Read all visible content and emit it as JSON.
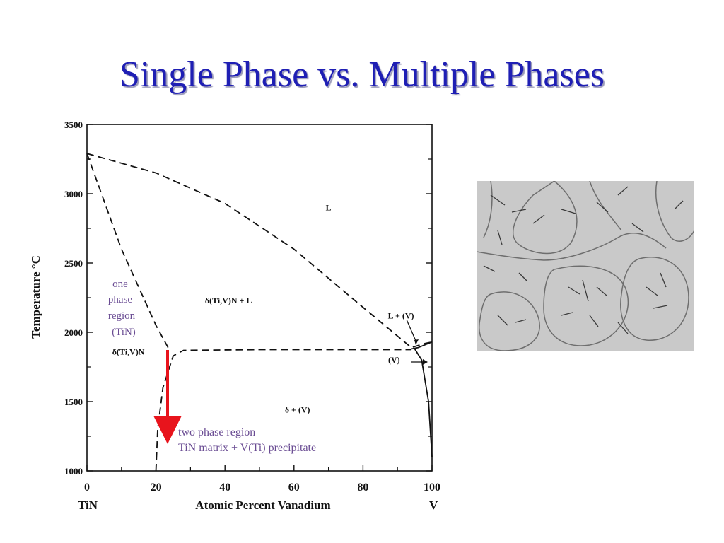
{
  "slide": {
    "title": "Single Phase vs. Multiple Phases"
  },
  "chart_data": {
    "type": "line",
    "title": "",
    "xlabel": "Atomic Percent Vanadium",
    "ylabel": "Temperature °C",
    "xlim": [
      0,
      100
    ],
    "ylim": [
      1000,
      3500
    ],
    "x_ticks": [
      "0",
      "20",
      "40",
      "60",
      "80",
      "100"
    ],
    "y_ticks": [
      "1000",
      "1500",
      "2000",
      "2500",
      "3000",
      "3500"
    ],
    "x_endpoint_labels": {
      "left": "TiN",
      "right": "V"
    },
    "series": [
      {
        "style": "dashed",
        "points": [
          [
            0,
            3290
          ],
          [
            20,
            3150
          ],
          [
            40,
            2930
          ],
          [
            60,
            2600
          ],
          [
            80,
            2180
          ],
          [
            94,
            1890
          ],
          [
            98,
            1920
          ],
          [
            100,
            1930
          ]
        ]
      },
      {
        "style": "dashed",
        "points": [
          [
            0,
            3290
          ],
          [
            10,
            2600
          ],
          [
            20,
            2050
          ],
          [
            23.5,
            1890
          ]
        ]
      },
      {
        "style": "dashed",
        "points": [
          [
            20,
            1000
          ],
          [
            20.5,
            1300
          ],
          [
            22,
            1600
          ],
          [
            25,
            1830
          ],
          [
            28,
            1870
          ],
          [
            50,
            1875
          ],
          [
            80,
            1875
          ],
          [
            94,
            1875
          ]
        ]
      },
      {
        "style": "solid",
        "points": [
          [
            94,
            1880
          ],
          [
            96,
            1890
          ],
          [
            99,
            1920
          ],
          [
            100,
            1930
          ]
        ]
      },
      {
        "style": "solid",
        "points": [
          [
            95,
            1880
          ],
          [
            97,
            1800
          ],
          [
            99,
            1500
          ],
          [
            100,
            1100
          ]
        ]
      }
    ],
    "region_labels": [
      {
        "text": "L",
        "x": 70,
        "y": 2880
      },
      {
        "text": "δ(Ti,V)N + L",
        "x": 41,
        "y": 2210
      },
      {
        "text": "L + (V)",
        "x": 91,
        "y": 2100
      },
      {
        "text": "δ(Ti,V)N",
        "x": 12,
        "y": 1840
      },
      {
        "text": "(V)",
        "x": 89,
        "y": 1780
      },
      {
        "text": "δ + (V)",
        "x": 61,
        "y": 1420
      }
    ],
    "annotations": {
      "one_phase": [
        "one",
        "phase",
        "region",
        "(TiN)"
      ],
      "two_phase": [
        "two phase region",
        "TiN matrix + V(Ti) precipitate"
      ]
    },
    "grid": false
  },
  "colors": {
    "title": "#1f1fb4",
    "annotation": "#6a4c93",
    "arrow": "#e8141c",
    "micrograph_bg": "#c8c8c8"
  },
  "image": {
    "micrograph": "grain-microstructure-micrograph"
  }
}
